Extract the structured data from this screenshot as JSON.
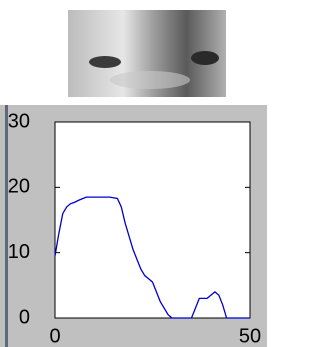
{
  "chart_data": {
    "type": "line",
    "x": [
      0,
      1,
      2,
      3,
      4,
      5,
      6,
      8,
      10,
      12,
      14,
      16,
      17,
      18,
      19,
      20,
      21,
      22,
      23,
      24,
      25,
      26,
      27,
      28,
      29,
      30,
      32,
      34,
      35,
      36,
      37,
      38,
      39,
      40,
      41,
      42,
      43,
      44,
      46,
      48,
      50
    ],
    "series": [
      {
        "color": "#0000cc",
        "values": [
          9.5,
          13,
          16,
          17,
          17.5,
          17.7,
          18,
          18.5,
          18.5,
          18.5,
          18.5,
          18.3,
          17,
          14.5,
          12.5,
          10.5,
          9,
          7.5,
          6.5,
          6,
          5.5,
          4,
          2.5,
          1.5,
          0.5,
          0,
          0,
          0,
          0,
          1.5,
          3,
          3,
          3,
          3.5,
          4,
          3.5,
          2,
          0,
          0,
          0,
          0
        ]
      }
    ],
    "xlim": [
      0,
      50
    ],
    "ylim": [
      0,
      30
    ],
    "xticks": [
      0,
      50
    ],
    "yticks": [
      0,
      10,
      20,
      30
    ],
    "grid": false
  }
}
